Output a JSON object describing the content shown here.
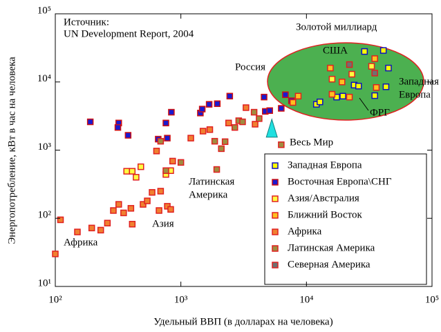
{
  "chart_data": {
    "type": "scatter",
    "xlabel": "Удельный ВВП (в долларах на человека)",
    "ylabel": "Энергопотребление, кВт в час на человека",
    "log_x": true,
    "log_y": true,
    "xlim": [
      100,
      100000
    ],
    "ylim": [
      10,
      100000
    ],
    "xticks": [
      {
        "value": 100,
        "label": "10²"
      },
      {
        "value": 1000,
        "label": "10³"
      },
      {
        "value": 10000,
        "label": "10⁴"
      },
      {
        "value": 100000,
        "label": "10⁵"
      }
    ],
    "yticks": [
      {
        "value": 10,
        "label": "10¹"
      },
      {
        "value": 100,
        "label": "10²"
      },
      {
        "value": 1000,
        "label": "10³"
      },
      {
        "value": 10000,
        "label": "10⁴"
      },
      {
        "value": 100000,
        "label": "10⁵"
      }
    ],
    "legend": "lower right",
    "series": [
      {
        "name": "Западная Европа",
        "color": "#ffff00",
        "edgecolor": "#1010c0",
        "x": [
          12000,
          12800,
          17400,
          19500,
          24000,
          26000,
          29000,
          35000,
          41000,
          43000,
          45000
        ],
        "y": [
          4700,
          5100,
          6000,
          6200,
          9000,
          8700,
          28000,
          6300,
          29000,
          8500,
          16000
        ]
      },
      {
        "name": "Восточная Европа\\СНГ",
        "color": "#1a1ad0",
        "edgecolor": "#d01010",
        "x": [
          190,
          320,
          315,
          380,
          760,
          660,
          780,
          840,
          1430,
          1480,
          1680,
          1950,
          2450,
          4600,
          4700,
          5100,
          6300,
          6800,
          7600
        ],
        "y": [
          2600,
          2500,
          2150,
          1650,
          2500,
          1450,
          1500,
          3600,
          3500,
          4000,
          4700,
          4800,
          6200,
          6000,
          3700,
          3800,
          4100,
          6500,
          5300
        ]
      },
      {
        "name": "Азия/Австралия",
        "color": "#ffff40",
        "edgecolor": "#e02020",
        "x": [
          370,
          410,
          440,
          480,
          760,
          830,
          16000,
          23000,
          33000
        ],
        "y": [
          490,
          490,
          400,
          570,
          440,
          500,
          11000,
          13000,
          17000
        ]
      },
      {
        "name": "Ближний Восток",
        "color": "#ffc020",
        "edgecolor": "#e02020",
        "x": [
          7800,
          8600,
          15500,
          16000,
          19200,
          22000,
          35000,
          36000
        ],
        "y": [
          5000,
          6200,
          16000,
          6600,
          10000,
          6000,
          22000,
          8300
        ]
      },
      {
        "name": "Африка",
        "color": "#f08030",
        "edgecolor": "#e02020",
        "x": [
          100,
          110,
          150,
          195,
          230,
          260,
          290,
          320,
          350,
          400,
          410,
          500,
          540,
          590,
          640,
          670,
          690,
          780,
          830,
          860,
          1200,
          1500,
          1700,
          2400,
          3300,
          3900
        ],
        "y": [
          30,
          95,
          63,
          72,
          67,
          85,
          130,
          160,
          120,
          140,
          82,
          160,
          180,
          240,
          970,
          130,
          250,
          150,
          135,
          690,
          1500,
          1900,
          2000,
          2500,
          4200,
          2400
        ]
      },
      {
        "name": "Латинская Америка",
        "color": "#a08c40",
        "edgecolor": "#e02020",
        "x": [
          690,
          760,
          1000,
          1860,
          1930,
          2100,
          2250,
          2690,
          2890,
          3100,
          3830,
          4200,
          6300
        ],
        "y": [
          1350,
          500,
          660,
          1350,
          520,
          1050,
          1330,
          2150,
          2700,
          2600,
          3600,
          2900,
          1200
        ]
      },
      {
        "name": "Северная Америка",
        "color": "#707070",
        "edgecolor": "#e02020",
        "x": [
          22000,
          35000
        ],
        "y": [
          18000,
          13500
        ]
      }
    ],
    "world_point": {
      "label": "Весь Мир",
      "x": 5300,
      "y": 2050,
      "color": "#20e0e0"
    },
    "source": [
      "Источник:",
      "UN Development Report, 2004"
    ],
    "golden_billion": "Золотой миллиард",
    "labels": {
      "usa": "США",
      "russia": "Россия",
      "western_europe": [
        "Западная",
        "Европа"
      ],
      "frg": "ФРГ",
      "latin_america": [
        "Латинская",
        "Америка"
      ],
      "asia": "Азия",
      "africa": "Африка"
    }
  }
}
